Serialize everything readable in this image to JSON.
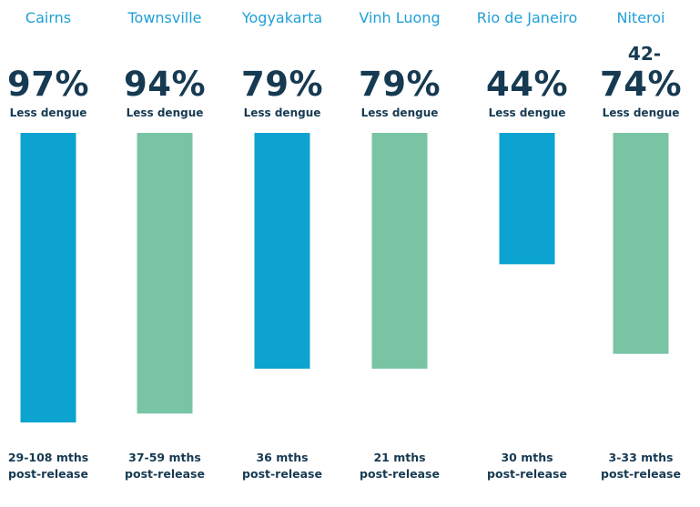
{
  "colors": {
    "blue": "#0ca3d1",
    "green": "#79c4a5",
    "title": "#1f9fd6",
    "text": "#163a52"
  },
  "chart_data": {
    "type": "bar",
    "orientation": "vertical-hanging",
    "categories": [
      "Cairns",
      "Townsville",
      "Yogyakarta",
      "Vinh Luong",
      "Rio de Janeiro",
      "Niteroi"
    ],
    "values": [
      97,
      94,
      79,
      79,
      44,
      74
    ],
    "value_labels": [
      "97%",
      "94%",
      "79%",
      "79%",
      "44%",
      "74%"
    ],
    "range_prefix": [
      "",
      "",
      "",
      "",
      "",
      "42-"
    ],
    "sublabel": "Less dengue",
    "periods": [
      [
        "29-108 mths",
        "post-release"
      ],
      [
        "37-59 mths",
        "post-release"
      ],
      [
        "36 mths",
        "post-release"
      ],
      [
        "21 mths",
        "post-release"
      ],
      [
        "30 mths",
        "post-release"
      ],
      [
        "3-33 mths",
        "post-release"
      ]
    ],
    "bar_colors": [
      "#0ca3d1",
      "#79c4a5",
      "#0ca3d1",
      "#79c4a5",
      "#0ca3d1",
      "#79c4a5"
    ],
    "ylim": [
      0,
      100
    ],
    "grid": false,
    "legend": "none"
  }
}
